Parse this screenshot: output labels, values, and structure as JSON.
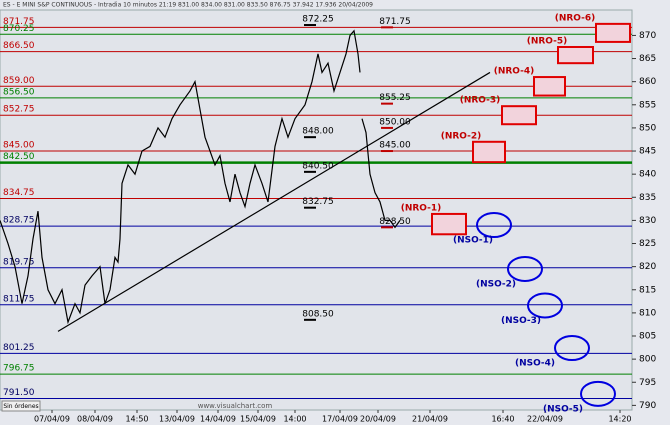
{
  "chart_data": {
    "type": "line",
    "title": "ES - E MINI S&P CONTINUOUS - Intradia 10 minutos  21:19  831.00  834.00  831.00  833.50  876.75  37.942  17.936  20/04/2009",
    "footer_button": "Sin órdenes",
    "watermark": "www.visualchart.com",
    "xlim": [
      0,
      632
    ],
    "ylim": [
      789,
      875.5
    ],
    "yticks": [
      870,
      865,
      860,
      855,
      850,
      845,
      840,
      835,
      830,
      825,
      820,
      815,
      810,
      805,
      800,
      795,
      790
    ],
    "xticks": [
      {
        "value": 52,
        "label": "07/04/09"
      },
      {
        "value": 95,
        "label": "08/04/09"
      },
      {
        "value": 137,
        "label": "14:50"
      },
      {
        "value": 177,
        "label": "13/04/09"
      },
      {
        "value": 218,
        "label": "14/04/09"
      },
      {
        "value": 258,
        "label": "15/04/09"
      },
      {
        "value": 295,
        "label": "14:00"
      },
      {
        "value": 340,
        "label": "17/04/09"
      },
      {
        "value": 378,
        "label": "20/04/09"
      },
      {
        "value": 430,
        "label": "21/04/09"
      },
      {
        "value": 503,
        "label": "16:40"
      },
      {
        "value": 545,
        "label": "22/04/09"
      },
      {
        "value": 620,
        "label": "14:20"
      }
    ],
    "series": [
      {
        "name": "ES",
        "color": "#000000",
        "x": [
          0,
          8,
          15,
          22,
          28,
          33,
          38,
          42,
          48,
          55,
          62,
          68,
          75,
          80,
          85,
          92,
          100,
          105,
          110,
          115,
          118,
          120,
          122,
          128,
          135,
          142,
          150,
          158,
          165,
          172,
          180,
          190,
          195,
          200,
          205,
          210,
          215,
          220,
          225,
          230,
          235,
          240,
          245,
          250,
          255,
          262,
          268,
          275,
          282,
          288,
          295,
          305,
          312,
          318,
          322,
          328,
          334,
          340,
          346,
          350,
          354,
          358,
          360,
          361,
          362,
          366,
          370,
          375,
          380,
          385,
          390,
          395,
          400
        ],
        "values": [
          830,
          825,
          820,
          812,
          818,
          826,
          832,
          822,
          815,
          812,
          815,
          808,
          812,
          810,
          816,
          818,
          820,
          812,
          815,
          822,
          821,
          826,
          838,
          842,
          840,
          845,
          846,
          850,
          848,
          852,
          855,
          858,
          860,
          854,
          848,
          845,
          842,
          844,
          838,
          834,
          840,
          836,
          833,
          838,
          842,
          838,
          834,
          846,
          852,
          848,
          852,
          855,
          860,
          866,
          862,
          864,
          858,
          862,
          866,
          870,
          871,
          866,
          862,
          null,
          852,
          849,
          840,
          836,
          834,
          830,
          830,
          828.5,
          830
        ]
      }
    ],
    "trendline": {
      "x": [
        58,
        490
      ],
      "values": [
        806,
        862
      ]
    },
    "levels": [
      {
        "value": 871.75,
        "label": "871.75",
        "color": "#c00000"
      },
      {
        "value": 870.25,
        "label": "870.25",
        "color": "#008000"
      },
      {
        "value": 866.5,
        "label": "866.50",
        "color": "#c00000"
      },
      {
        "value": 859,
        "label": "859.00",
        "color": "#c00000"
      },
      {
        "value": 856.5,
        "label": "856.50",
        "color": "#008000"
      },
      {
        "value": 852.75,
        "label": "852.75",
        "color": "#c00000"
      },
      {
        "value": 845,
        "label": "845.00",
        "color": "#c00000"
      },
      {
        "value": 842.5,
        "label": "842.50",
        "color": "#008000"
      },
      {
        "value": 834.75,
        "label": "834.75",
        "color": "#c00000"
      },
      {
        "value": 828.75,
        "label": "828.75",
        "color": "#0000a0"
      },
      {
        "value": 819.75,
        "label": "819.75",
        "color": "#0000a0"
      },
      {
        "value": 811.75,
        "label": "811.75",
        "color": "#0000a0"
      },
      {
        "value": 801.25,
        "label": "801.25",
        "color": "#0000a0"
      },
      {
        "value": 796.75,
        "label": "796.75",
        "color": "#008000"
      },
      {
        "value": 791.5,
        "label": "791.50",
        "color": "#0000a0"
      }
    ],
    "annotations": [
      {
        "value": 872.25,
        "label": "872.25",
        "x": 318
      },
      {
        "value": 871.75,
        "label": "871.75",
        "x": 395
      },
      {
        "value": 855.25,
        "label": "855.25",
        "x": 395
      },
      {
        "value": 850,
        "label": "850.00",
        "x": 395
      },
      {
        "value": 848,
        "label": "848.00",
        "x": 318
      },
      {
        "value": 845,
        "label": "845.00",
        "x": 395
      },
      {
        "value": 840.5,
        "label": "840.50",
        "x": 318
      },
      {
        "value": 832.75,
        "label": "832.75",
        "x": 318
      },
      {
        "value": 828.5,
        "label": "828.50",
        "x": 395
      },
      {
        "value": 808.5,
        "label": "808.50",
        "x": 318
      }
    ],
    "resistance_zones": [
      {
        "label": "(NRO-6)",
        "x": [
          596,
          630
        ],
        "y": [
          872.5,
          868.6
        ],
        "label_x": 575
      },
      {
        "label": "(NRO-5)",
        "x": [
          558,
          593
        ],
        "y": [
          867.5,
          864
        ],
        "label_x": 547
      },
      {
        "label": "(NRO-4)",
        "x": [
          534,
          565
        ],
        "y": [
          861,
          857
        ],
        "label_x": 514
      },
      {
        "label": "(NRO-3)",
        "x": [
          502,
          536
        ],
        "y": [
          854.7,
          850.8
        ],
        "label_x": 480
      },
      {
        "label": "(NRO-2)",
        "x": [
          473,
          505
        ],
        "y": [
          847,
          842.6
        ],
        "label_x": 461
      },
      {
        "label": "(NRO-1)",
        "x": [
          432,
          466
        ],
        "y": [
          831.4,
          827
        ],
        "label_x": 421
      }
    ],
    "support_zones": [
      {
        "label": "(NSO-1)",
        "x": 494,
        "y": 829,
        "label_x": 473
      },
      {
        "label": "(NSO-2)",
        "x": 525,
        "y": 819.5,
        "label_x": 496
      },
      {
        "label": "(NSO-3)",
        "x": 545,
        "y": 811.6,
        "label_x": 521
      },
      {
        "label": "(NSO-4)",
        "x": 572,
        "y": 802.4,
        "label_x": 535
      },
      {
        "label": "(NSO-5)",
        "x": 598,
        "y": 792.5,
        "label_x": 563
      }
    ]
  }
}
